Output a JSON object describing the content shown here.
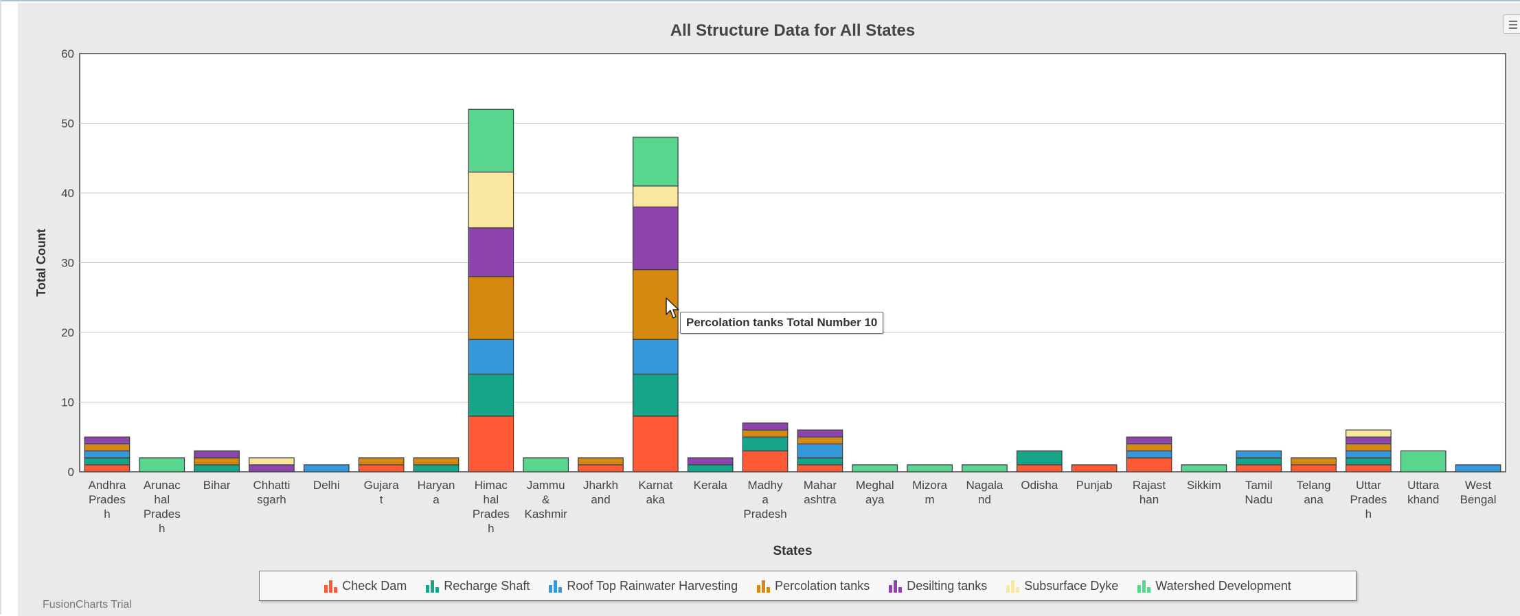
{
  "chart_data": {
    "type": "bar",
    "stacked": true,
    "title": "All Structure Data for All States",
    "xlabel": "States",
    "ylabel": "Total Count",
    "ylim": [
      0,
      60
    ],
    "yticks": [
      0,
      10,
      20,
      30,
      40,
      50,
      60
    ],
    "grid": true,
    "legend_position": "bottom",
    "categories": [
      [
        "Andhra",
        "Prades",
        "h"
      ],
      [
        "Arunac",
        "hal",
        "Prades",
        "h"
      ],
      [
        "Bihar"
      ],
      [
        "Chhatti",
        "sgarh"
      ],
      [
        "Delhi"
      ],
      [
        "Gujara",
        "t"
      ],
      [
        "Haryan",
        "a"
      ],
      [
        "Himac",
        "hal",
        "Prades",
        "h"
      ],
      [
        "Jammu",
        "&",
        "Kashmir"
      ],
      [
        "Jharkh",
        "and"
      ],
      [
        "Karnat",
        "aka"
      ],
      [
        "Kerala"
      ],
      [
        "Madhy",
        "a",
        "Pradesh"
      ],
      [
        "Mahar",
        "ashtra"
      ],
      [
        "Meghal",
        "aya"
      ],
      [
        "Mizora",
        "m"
      ],
      [
        "Nagala",
        "nd"
      ],
      [
        "Odisha"
      ],
      [
        "Punjab"
      ],
      [
        "Rajast",
        "han"
      ],
      [
        "Sikkim"
      ],
      [
        "Tamil",
        "Nadu"
      ],
      [
        "Telang",
        "ana"
      ],
      [
        "Uttar",
        "Prades",
        "h"
      ],
      [
        "Uttara",
        "khand"
      ],
      [
        "West",
        "Bengal"
      ]
    ],
    "series": [
      {
        "name": "Check Dam",
        "color": "#fe5a35",
        "values": [
          1,
          0,
          0,
          0,
          0,
          1,
          0,
          8,
          0,
          1,
          8,
          0,
          3,
          1,
          0,
          0,
          0,
          1,
          1,
          2,
          0,
          1,
          1,
          1,
          0,
          0
        ]
      },
      {
        "name": "Recharge Shaft",
        "color": "#17a589",
        "values": [
          1,
          0,
          1,
          0,
          0,
          0,
          1,
          6,
          0,
          0,
          6,
          1,
          2,
          1,
          0,
          0,
          0,
          2,
          0,
          0,
          0,
          1,
          0,
          1,
          0,
          0
        ]
      },
      {
        "name": "Roof Top Rainwater Harvesting",
        "color": "#3498db",
        "values": [
          1,
          0,
          0,
          0,
          1,
          0,
          0,
          5,
          0,
          0,
          5,
          0,
          0,
          2,
          0,
          0,
          0,
          0,
          0,
          1,
          0,
          1,
          0,
          1,
          0,
          1
        ]
      },
      {
        "name": "Percolation tanks",
        "color": "#d68910",
        "values": [
          1,
          0,
          1,
          0,
          0,
          1,
          1,
          9,
          0,
          1,
          10,
          0,
          1,
          1,
          0,
          0,
          0,
          0,
          0,
          1,
          0,
          0,
          1,
          1,
          0,
          0
        ]
      },
      {
        "name": "Desilting tanks",
        "color": "#8e44ad",
        "values": [
          1,
          0,
          1,
          1,
          0,
          0,
          0,
          7,
          0,
          0,
          9,
          1,
          1,
          1,
          0,
          0,
          0,
          0,
          0,
          1,
          0,
          0,
          0,
          1,
          0,
          0
        ]
      },
      {
        "name": "Subsurface Dyke",
        "color": "#f9e79f",
        "values": [
          0,
          0,
          0,
          1,
          0,
          0,
          0,
          8,
          0,
          0,
          3,
          0,
          0,
          0,
          0,
          0,
          0,
          0,
          0,
          0,
          0,
          0,
          0,
          1,
          0,
          0
        ]
      },
      {
        "name": "Watershed Development",
        "color": "#58d68d",
        "values": [
          0,
          2,
          0,
          0,
          0,
          0,
          0,
          9,
          2,
          0,
          7,
          0,
          0,
          0,
          1,
          1,
          1,
          0,
          0,
          0,
          1,
          0,
          0,
          0,
          3,
          0
        ]
      }
    ]
  },
  "tooltip": {
    "text": "Percolation tanks Total Number 10"
  },
  "footer": {
    "trial_note": "FusionCharts Trial"
  },
  "icons": {
    "menu": "menu-icon",
    "cursor": "cursor-icon"
  }
}
